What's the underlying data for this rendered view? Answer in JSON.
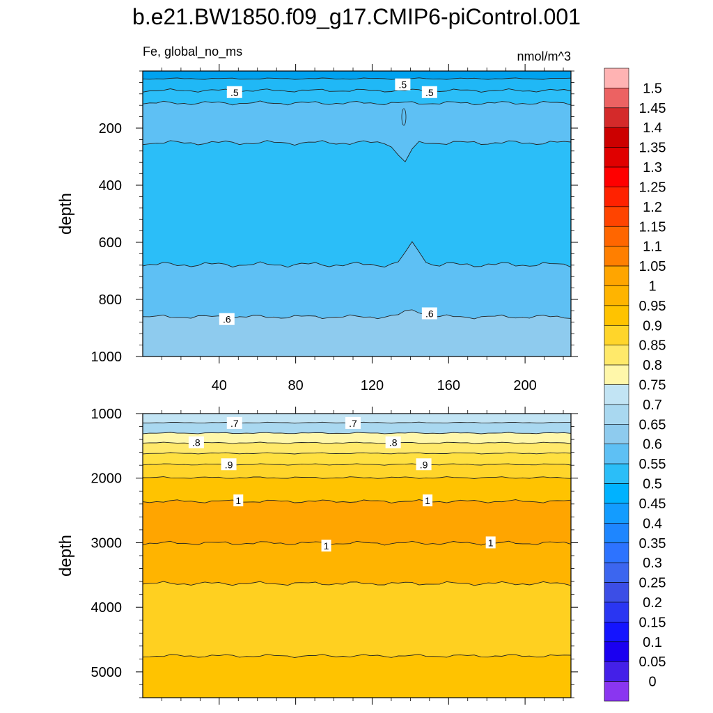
{
  "title": "b.e21.BW1850.f09_g17.CMIP6-piControl.001",
  "chart_data": [
    {
      "type": "heatmap",
      "panel": "upper",
      "left_label": "Fe, global_no_ms",
      "right_label": "nmol/m^3",
      "ylabel": "depth",
      "xlabel": "",
      "xlim": [
        0,
        224
      ],
      "ylim": [
        1000,
        0
      ],
      "xticks": [
        40,
        80,
        120,
        160,
        200
      ],
      "yticks": [
        200,
        400,
        600,
        800,
        1000
      ],
      "contour_labels": [
        {
          "text": ".5",
          "x": 48,
          "depth": 75
        },
        {
          "text": ".5",
          "x": 136,
          "depth": 48
        },
        {
          "text": ".5",
          "x": 150,
          "depth": 75
        },
        {
          "text": ".6",
          "x": 44,
          "depth": 870
        },
        {
          "text": ".6",
          "x": 150,
          "depth": 850
        }
      ]
    },
    {
      "type": "heatmap",
      "panel": "lower",
      "ylabel": "depth",
      "xlabel": "",
      "xlim": [
        0,
        224
      ],
      "ylim": [
        5400,
        1000
      ],
      "xticks": [
        40,
        80,
        120,
        160,
        200
      ],
      "yticks": [
        1000,
        2000,
        3000,
        4000,
        5000
      ],
      "contour_labels": [
        {
          "text": ".7",
          "x": 48,
          "depth": 1150
        },
        {
          "text": ".7",
          "x": 110,
          "depth": 1150
        },
        {
          "text": ".8",
          "x": 28,
          "depth": 1450
        },
        {
          "text": ".8",
          "x": 131,
          "depth": 1450
        },
        {
          "text": ".9",
          "x": 45,
          "depth": 1790
        },
        {
          "text": ".9",
          "x": 147,
          "depth": 1790
        },
        {
          "text": "1",
          "x": 50,
          "depth": 2350
        },
        {
          "text": "1",
          "x": 149,
          "depth": 2350
        },
        {
          "text": "1",
          "x": 96,
          "depth": 3050
        },
        {
          "text": "1",
          "x": 182,
          "depth": 3000
        }
      ]
    }
  ],
  "colorbar": {
    "labels": [
      "1.5",
      "1.45",
      "1.4",
      "1.35",
      "1.3",
      "1.25",
      "1.2",
      "1.15",
      "1.1",
      "1.05",
      "1",
      "0.95",
      "0.9",
      "0.85",
      "0.8",
      "0.75",
      "0.7",
      "0.65",
      "0.6",
      "0.55",
      "0.5",
      "0.45",
      "0.4",
      "0.35",
      "0.3",
      "0.25",
      "0.2",
      "0.15",
      "0.1",
      "0.05",
      "0"
    ],
    "colors_top_to_bottom": [
      "#ffb3b3",
      "#ec6262",
      "#d42a2a",
      "#cc0000",
      "#e00000",
      "#ff0000",
      "#ff2200",
      "#ff4400",
      "#ff6600",
      "#ff7f00",
      "#ffa500",
      "#ffb400",
      "#ffc300",
      "#ffd52a",
      "#ffe96a",
      "#fff7aa",
      "#c2e4f4",
      "#a9d8f0",
      "#8ecbee",
      "#5ec0f4",
      "#2bbef8",
      "#00b2ff",
      "#139cff",
      "#1e86ff",
      "#2d73ff",
      "#3c66ef",
      "#3c4ee6",
      "#2a36f2",
      "#1414ff",
      "#1a00f0",
      "#4420e8",
      "#8a36f0"
    ]
  }
}
